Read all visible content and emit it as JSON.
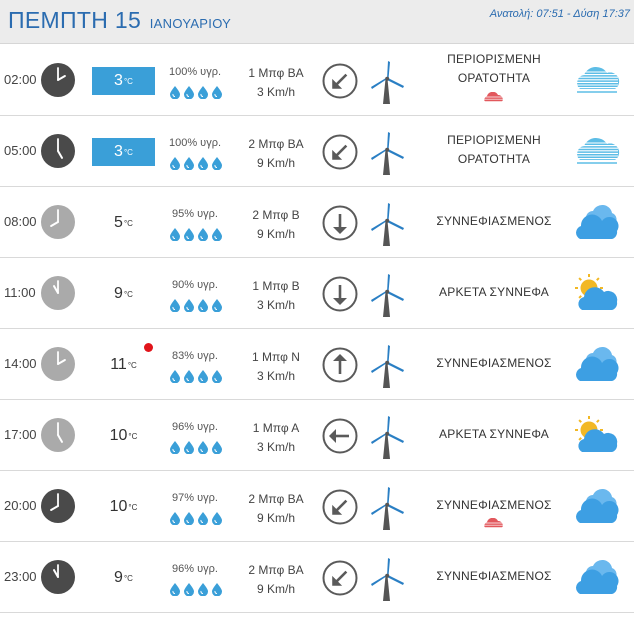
{
  "header": {
    "day": "ΠΕΜΠΤΗ 15",
    "month": "ΙΑΝΟΥΑΡΙΟΥ",
    "sun_info": "Ανατολή: 07:51  - Δύση 17:37"
  },
  "temp_unit": "°C",
  "colors": {
    "accent": "#3a9fd8",
    "title": "#2b6cb0",
    "alert_dot": "#e1141a",
    "drop": "#3a9fd8",
    "fog": "#5dbde6",
    "cloud": "#3d9fe3",
    "sun": "#f2b824",
    "rain_cloud": "#e2585d"
  },
  "rows": [
    {
      "time": "02:00",
      "clock": "dark",
      "hour": 2,
      "temp": "3",
      "temp_highlight": true,
      "alert": false,
      "humidity": "100% υγρ.",
      "drops": 4,
      "wind_beaufort": "1 Μπφ ΒΑ",
      "wind_speed": "3 Km/h",
      "wind_arrow": "arrow-down-left-icon",
      "arrow_rotation": 225,
      "condition": [
        "ΠΕΡΙΟΡΙΣΜΕΝΗ",
        "ΟΡΑΤΟΤΗΤΑ"
      ],
      "rain_icon": true,
      "weather_icon": "fog-icon"
    },
    {
      "time": "05:00",
      "clock": "dark",
      "hour": 5,
      "temp": "3",
      "temp_highlight": true,
      "alert": false,
      "humidity": "100% υγρ.",
      "drops": 4,
      "wind_beaufort": "2 Μπφ ΒΑ",
      "wind_speed": "9 Km/h",
      "wind_arrow": "arrow-down-left-icon",
      "arrow_rotation": 225,
      "condition": [
        "ΠΕΡΙΟΡΙΣΜΕΝΗ",
        "ΟΡΑΤΟΤΗΤΑ"
      ],
      "rain_icon": false,
      "weather_icon": "fog-icon"
    },
    {
      "time": "08:00",
      "clock": "light",
      "hour": 8,
      "temp": "5",
      "temp_highlight": false,
      "alert": false,
      "humidity": "95% υγρ.",
      "drops": 4,
      "wind_beaufort": "2 Μπφ Β",
      "wind_speed": "9 Km/h",
      "wind_arrow": "arrow-down-icon",
      "arrow_rotation": 180,
      "condition": [
        "ΣΥΝΝΕΦΙΑΣΜΕΝΟΣ"
      ],
      "rain_icon": false,
      "weather_icon": "cloudy-icon"
    },
    {
      "time": "11:00",
      "clock": "light",
      "hour": 11,
      "temp": "9",
      "temp_highlight": false,
      "alert": false,
      "humidity": "90% υγρ.",
      "drops": 4,
      "wind_beaufort": "1 Μπφ Β",
      "wind_speed": "3 Km/h",
      "wind_arrow": "arrow-down-icon",
      "arrow_rotation": 180,
      "condition": [
        "ΑΡΚΕΤΑ ΣΥΝΝΕΦΑ"
      ],
      "rain_icon": false,
      "weather_icon": "partly-cloudy-icon"
    },
    {
      "time": "14:00",
      "clock": "light",
      "hour": 14,
      "temp": "11",
      "temp_highlight": false,
      "alert": true,
      "humidity": "83% υγρ.",
      "drops": 4,
      "wind_beaufort": "1 Μπφ Ν",
      "wind_speed": "3 Km/h",
      "wind_arrow": "arrow-up-icon",
      "arrow_rotation": 0,
      "condition": [
        "ΣΥΝΝΕΦΙΑΣΜΕΝΟΣ"
      ],
      "rain_icon": false,
      "weather_icon": "cloudy-icon"
    },
    {
      "time": "17:00",
      "clock": "light",
      "hour": 17,
      "temp": "10",
      "temp_highlight": false,
      "alert": false,
      "humidity": "96% υγρ.",
      "drops": 4,
      "wind_beaufort": "1 Μπφ Α",
      "wind_speed": "3 Km/h",
      "wind_arrow": "arrow-left-icon",
      "arrow_rotation": 270,
      "condition": [
        "ΑΡΚΕΤΑ ΣΥΝΝΕΦΑ"
      ],
      "rain_icon": false,
      "weather_icon": "partly-cloudy-icon"
    },
    {
      "time": "20:00",
      "clock": "dark",
      "hour": 20,
      "temp": "10",
      "temp_highlight": false,
      "alert": false,
      "humidity": "97% υγρ.",
      "drops": 4,
      "wind_beaufort": "2 Μπφ ΒΑ",
      "wind_speed": "9 Km/h",
      "wind_arrow": "arrow-down-left-icon",
      "arrow_rotation": 225,
      "condition": [
        "ΣΥΝΝΕΦΙΑΣΜΕΝΟΣ"
      ],
      "rain_icon": true,
      "weather_icon": "cloudy-icon"
    },
    {
      "time": "23:00",
      "clock": "dark",
      "hour": 23,
      "temp": "9",
      "temp_highlight": false,
      "alert": false,
      "humidity": "96% υγρ.",
      "drops": 4,
      "wind_beaufort": "2 Μπφ ΒΑ",
      "wind_speed": "9 Km/h",
      "wind_arrow": "arrow-down-left-icon",
      "arrow_rotation": 225,
      "condition": [
        "ΣΥΝΝΕΦΙΑΣΜΕΝΟΣ"
      ],
      "rain_icon": false,
      "weather_icon": "cloudy-icon"
    }
  ]
}
